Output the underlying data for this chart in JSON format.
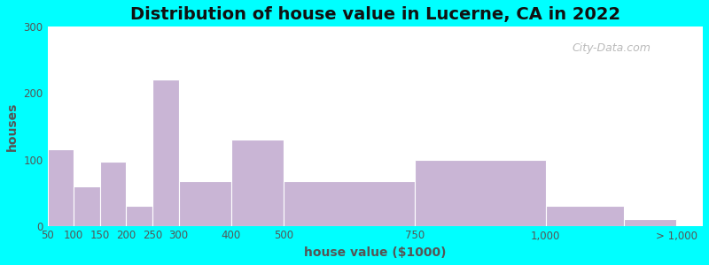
{
  "title": "Distribution of house value in Lucerne, CA in 2022",
  "xlabel": "house value ($1000)",
  "ylabel": "houses",
  "bar_left_edges": [
    50,
    100,
    150,
    200,
    250,
    300,
    400,
    500,
    750,
    1000,
    1150
  ],
  "bar_widths": [
    50,
    50,
    50,
    50,
    50,
    100,
    100,
    250,
    250,
    150,
    100
  ],
  "bar_values": [
    115,
    60,
    97,
    30,
    220,
    68,
    130,
    68,
    100,
    30,
    10
  ],
  "bar_color": "#c9b5d5",
  "bar_edgecolor": "#ffffff",
  "ylim": [
    0,
    300
  ],
  "yticks": [
    0,
    100,
    200,
    300
  ],
  "xtick_positions": [
    50,
    100,
    150,
    200,
    250,
    300,
    400,
    500,
    750,
    1000,
    1250
  ],
  "xtick_labels": [
    "50",
    "100",
    "150",
    "200",
    "250",
    "300",
    "400",
    "500",
    "750",
    "1,000",
    "> 1,000"
  ],
  "xlim_left": 50,
  "xlim_right": 1300,
  "bg_color_left": "#e8f5e2",
  "bg_color_right": "#f8f0f8",
  "figure_bg": "#00ffff",
  "title_fontsize": 14,
  "axis_label_fontsize": 10,
  "tick_fontsize": 8.5,
  "watermark_text": "City-Data.com"
}
